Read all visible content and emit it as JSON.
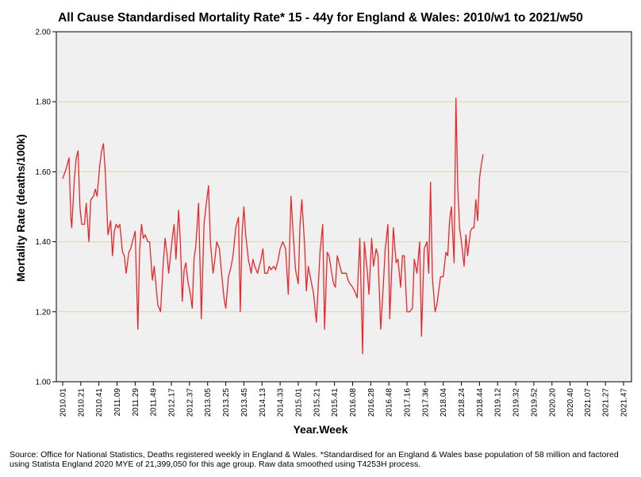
{
  "chart_data": {
    "type": "line",
    "title": "All Cause Standardised Mortality Rate* 15 - 44y for England & Wales: 2010/w1 to 2021/w50",
    "xlabel": "Year.Week",
    "ylabel": "Mortality Rate (deaths/100k)",
    "ylim": [
      1.0,
      2.0
    ],
    "yticks": [
      "1.00",
      "1.20",
      "1.40",
      "1.60",
      "1.80",
      "2.00"
    ],
    "x_ticks": [
      "2010.01",
      "2010.21",
      "2010.41",
      "2011.09",
      "2011.29",
      "2011.49",
      "2012.17",
      "2012.37",
      "2013.05",
      "2013.25",
      "2013.45",
      "2014.13",
      "2014.33",
      "2015.01",
      "2015.21",
      "2015.41",
      "2016.08",
      "2016.28",
      "2016.48",
      "2017.16",
      "2017.36",
      "2018.04",
      "2018.24",
      "2018.44",
      "2019.12",
      "2019.32",
      "2019.52",
      "2020.20",
      "2020.40",
      "2021.07",
      "2021.27",
      "2021.47"
    ],
    "grid": "horizontal",
    "colors": {
      "line": "#e8262b",
      "plot_background": "#f0f0f0",
      "gridline": "#d8d8a6"
    },
    "series": [
      {
        "points": [
          [
            "2010.01",
            1.58
          ],
          [
            "2010.05",
            1.61
          ],
          [
            "2010.08",
            1.64
          ],
          [
            "2010.10",
            1.47
          ],
          [
            "2010.11",
            1.44
          ],
          [
            "2010.14",
            1.58
          ],
          [
            "2010.16",
            1.64
          ],
          [
            "2010.18",
            1.66
          ],
          [
            "2010.20",
            1.5
          ],
          [
            "2010.22",
            1.45
          ],
          [
            "2010.25",
            1.45
          ],
          [
            "2010.27",
            1.51
          ],
          [
            "2010.30",
            1.4
          ],
          [
            "2010.32",
            1.52
          ],
          [
            "2010.35",
            1.53
          ],
          [
            "2010.37",
            1.55
          ],
          [
            "2010.39",
            1.53
          ],
          [
            "2010.42",
            1.62
          ],
          [
            "2010.44",
            1.66
          ],
          [
            "2010.46",
            1.68
          ],
          [
            "2010.48",
            1.6
          ],
          [
            "2010.51",
            1.42
          ],
          [
            "2011.02",
            1.46
          ],
          [
            "2011.04",
            1.36
          ],
          [
            "2011.06",
            1.43
          ],
          [
            "2011.08",
            1.45
          ],
          [
            "2011.10",
            1.44
          ],
          [
            "2011.12",
            1.45
          ],
          [
            "2011.15",
            1.37
          ],
          [
            "2011.17",
            1.36
          ],
          [
            "2011.19",
            1.31
          ],
          [
            "2011.22",
            1.37
          ],
          [
            "2011.24",
            1.38
          ],
          [
            "2011.26",
            1.4
          ],
          [
            "2011.29",
            1.43
          ],
          [
            "2011.32",
            1.15
          ],
          [
            "2011.34",
            1.38
          ],
          [
            "2011.36",
            1.45
          ],
          [
            "2011.38",
            1.41
          ],
          [
            "2011.40",
            1.42
          ],
          [
            "2011.43",
            1.4
          ],
          [
            "2011.45",
            1.4
          ],
          [
            "2011.48",
            1.29
          ],
          [
            "2011.50",
            1.33
          ],
          [
            "2012.02",
            1.22
          ],
          [
            "2012.05",
            1.2
          ],
          [
            "2012.08",
            1.34
          ],
          [
            "2012.10",
            1.41
          ],
          [
            "2012.12",
            1.37
          ],
          [
            "2012.14",
            1.31
          ],
          [
            "2012.16",
            1.36
          ],
          [
            "2012.18",
            1.41
          ],
          [
            "2012.20",
            1.45
          ],
          [
            "2012.22",
            1.35
          ],
          [
            "2012.25",
            1.49
          ],
          [
            "2012.27",
            1.39
          ],
          [
            "2012.29",
            1.23
          ],
          [
            "2012.31",
            1.32
          ],
          [
            "2012.33",
            1.34
          ],
          [
            "2012.35",
            1.29
          ],
          [
            "2012.38",
            1.25
          ],
          [
            "2012.40",
            1.21
          ],
          [
            "2012.42",
            1.35
          ],
          [
            "2012.44",
            1.39
          ],
          [
            "2012.47",
            1.51
          ],
          [
            "2012.50",
            1.18
          ],
          [
            "2013.01",
            1.45
          ],
          [
            "2013.04",
            1.52
          ],
          [
            "2013.06",
            1.56
          ],
          [
            "2013.08",
            1.4
          ],
          [
            "2013.11",
            1.31
          ],
          [
            "2013.13",
            1.35
          ],
          [
            "2013.15",
            1.4
          ],
          [
            "2013.18",
            1.38
          ],
          [
            "2013.20",
            1.32
          ],
          [
            "2013.23",
            1.24
          ],
          [
            "2013.25",
            1.21
          ],
          [
            "2013.28",
            1.3
          ],
          [
            "2013.31",
            1.33
          ],
          [
            "2013.33",
            1.36
          ],
          [
            "2013.36",
            1.44
          ],
          [
            "2013.39",
            1.47
          ],
          [
            "2013.41",
            1.2
          ],
          [
            "2013.43",
            1.42
          ],
          [
            "2013.45",
            1.5
          ],
          [
            "2013.47",
            1.42
          ],
          [
            "2013.50",
            1.35
          ],
          [
            "2014.01",
            1.31
          ],
          [
            "2014.03",
            1.35
          ],
          [
            "2014.05",
            1.33
          ],
          [
            "2014.08",
            1.31
          ],
          [
            "2014.10",
            1.33
          ],
          [
            "2014.12",
            1.35
          ],
          [
            "2014.14",
            1.38
          ],
          [
            "2014.16",
            1.31
          ],
          [
            "2014.19",
            1.31
          ],
          [
            "2014.21",
            1.33
          ],
          [
            "2014.23",
            1.32
          ],
          [
            "2014.26",
            1.33
          ],
          [
            "2014.28",
            1.32
          ],
          [
            "2014.31",
            1.35
          ],
          [
            "2014.33",
            1.38
          ],
          [
            "2014.36",
            1.4
          ],
          [
            "2014.39",
            1.38
          ],
          [
            "2014.42",
            1.25
          ],
          [
            "2014.45",
            1.53
          ],
          [
            "2014.47",
            1.44
          ],
          [
            "2014.50",
            1.32
          ],
          [
            "2015.01",
            1.28
          ],
          [
            "2015.03",
            1.45
          ],
          [
            "2015.05",
            1.52
          ],
          [
            "2015.08",
            1.39
          ],
          [
            "2015.10",
            1.26
          ],
          [
            "2015.12",
            1.33
          ],
          [
            "2015.15",
            1.29
          ],
          [
            "2015.18",
            1.25
          ],
          [
            "2015.21",
            1.17
          ],
          [
            "2015.23",
            1.27
          ],
          [
            "2015.25",
            1.37
          ],
          [
            "2015.28",
            1.45
          ],
          [
            "2015.30",
            1.15
          ],
          [
            "2015.33",
            1.37
          ],
          [
            "2015.35",
            1.36
          ],
          [
            "2015.38",
            1.31
          ],
          [
            "2015.40",
            1.28
          ],
          [
            "2015.42",
            1.27
          ],
          [
            "2015.44",
            1.36
          ],
          [
            "2015.47",
            1.33
          ],
          [
            "2015.49",
            1.31
          ],
          [
            "2016.01",
            1.31
          ],
          [
            "2016.03",
            1.29
          ],
          [
            "2016.05",
            1.28
          ],
          [
            "2016.08",
            1.27
          ],
          [
            "2016.10",
            1.26
          ],
          [
            "2016.13",
            1.24
          ],
          [
            "2016.16",
            1.41
          ],
          [
            "2016.19",
            1.08
          ],
          [
            "2016.21",
            1.4
          ],
          [
            "2016.24",
            1.32
          ],
          [
            "2016.26",
            1.25
          ],
          [
            "2016.29",
            1.41
          ],
          [
            "2016.31",
            1.33
          ],
          [
            "2016.34",
            1.38
          ],
          [
            "2016.36",
            1.36
          ],
          [
            "2016.39",
            1.15
          ],
          [
            "2016.42",
            1.28
          ],
          [
            "2016.44",
            1.38
          ],
          [
            "2016.47",
            1.45
          ],
          [
            "2016.49",
            1.18
          ],
          [
            "2017.01",
            1.44
          ],
          [
            "2017.04",
            1.34
          ],
          [
            "2017.06",
            1.35
          ],
          [
            "2017.09",
            1.27
          ],
          [
            "2017.11",
            1.36
          ],
          [
            "2017.13",
            1.36
          ],
          [
            "2017.16",
            1.2
          ],
          [
            "2017.19",
            1.2
          ],
          [
            "2017.22",
            1.21
          ],
          [
            "2017.24",
            1.35
          ],
          [
            "2017.27",
            1.31
          ],
          [
            "2017.30",
            1.4
          ],
          [
            "2017.32",
            1.13
          ],
          [
            "2017.35",
            1.38
          ],
          [
            "2017.38",
            1.4
          ],
          [
            "2017.40",
            1.31
          ],
          [
            "2017.42",
            1.57
          ],
          [
            "2017.44",
            1.3
          ],
          [
            "2017.47",
            1.2
          ],
          [
            "2017.49",
            1.22
          ],
          [
            "2018.01",
            1.3
          ],
          [
            "2018.04",
            1.3
          ],
          [
            "2018.07",
            1.37
          ],
          [
            "2018.09",
            1.36
          ],
          [
            "2018.11",
            1.46
          ],
          [
            "2018.13",
            1.5
          ],
          [
            "2018.16",
            1.34
          ],
          [
            "2018.18",
            1.81
          ],
          [
            "2018.20",
            1.56
          ],
          [
            "2018.22",
            1.44
          ],
          [
            "2018.24",
            1.4
          ],
          [
            "2018.27",
            1.33
          ],
          [
            "2018.29",
            1.42
          ],
          [
            "2018.31",
            1.36
          ],
          [
            "2018.34",
            1.43
          ],
          [
            "2018.36",
            1.44
          ],
          [
            "2018.38",
            1.44
          ],
          [
            "2018.40",
            1.52
          ],
          [
            "2018.42",
            1.46
          ],
          [
            "2018.44",
            1.58
          ],
          [
            "2018.46",
            1.62
          ],
          [
            "2018.48",
            1.65
          ]
        ]
      }
    ]
  },
  "source_note": "Source: Office for National Statistics, Deaths registered weekly in England & Wales. *Standardised for an England & Wales base population of 58 million and factored using Statista England 2020 MYE of 21,399,050 for this age group. Raw data smoothed using T4253H process."
}
